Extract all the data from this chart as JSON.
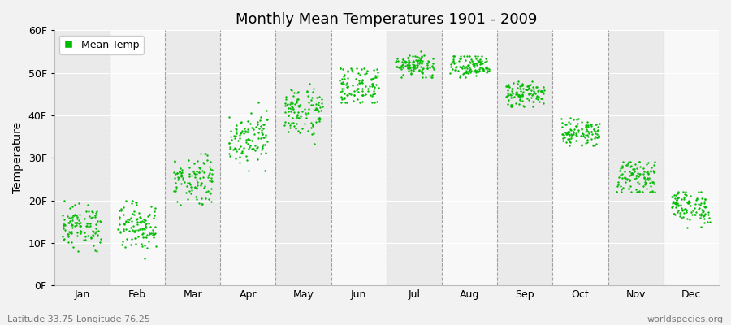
{
  "title": "Monthly Mean Temperatures 1901 - 2009",
  "ylabel": "Temperature",
  "subtitle_left": "Latitude 33.75 Longitude 76.25",
  "subtitle_right": "worldspecies.org",
  "legend_label": "Mean Temp",
  "dot_color": "#00BB00",
  "dot_size": 3,
  "ylim": [
    0,
    60
  ],
  "yticks": [
    0,
    10,
    20,
    30,
    40,
    50,
    60
  ],
  "ytick_labels": [
    "0F",
    "10F",
    "20F",
    "30F",
    "40F",
    "50F",
    "60F"
  ],
  "months": [
    "Jan",
    "Feb",
    "Mar",
    "Apr",
    "May",
    "Jun",
    "Jul",
    "Aug",
    "Sep",
    "Oct",
    "Nov",
    "Dec"
  ],
  "background_color": "#f2f2f2",
  "band_color_odd": "#eaeaea",
  "band_color_even": "#f8f8f8",
  "monthly_means": [
    14.0,
    14.0,
    25.0,
    35.0,
    41.0,
    47.0,
    52.0,
    51.5,
    45.0,
    36.0,
    25.5,
    18.5
  ],
  "monthly_stds": [
    2.5,
    2.8,
    3.0,
    3.0,
    3.0,
    2.5,
    1.5,
    1.5,
    1.5,
    1.5,
    2.0,
    2.0
  ],
  "monthly_ranges": [
    [
      8,
      20
    ],
    [
      3,
      20
    ],
    [
      19,
      31
    ],
    [
      27,
      43
    ],
    [
      33,
      48
    ],
    [
      43,
      51
    ],
    [
      49,
      55
    ],
    [
      49,
      54
    ],
    [
      42,
      48
    ],
    [
      33,
      40
    ],
    [
      22,
      29
    ],
    [
      13,
      22
    ]
  ],
  "n_years": 109
}
